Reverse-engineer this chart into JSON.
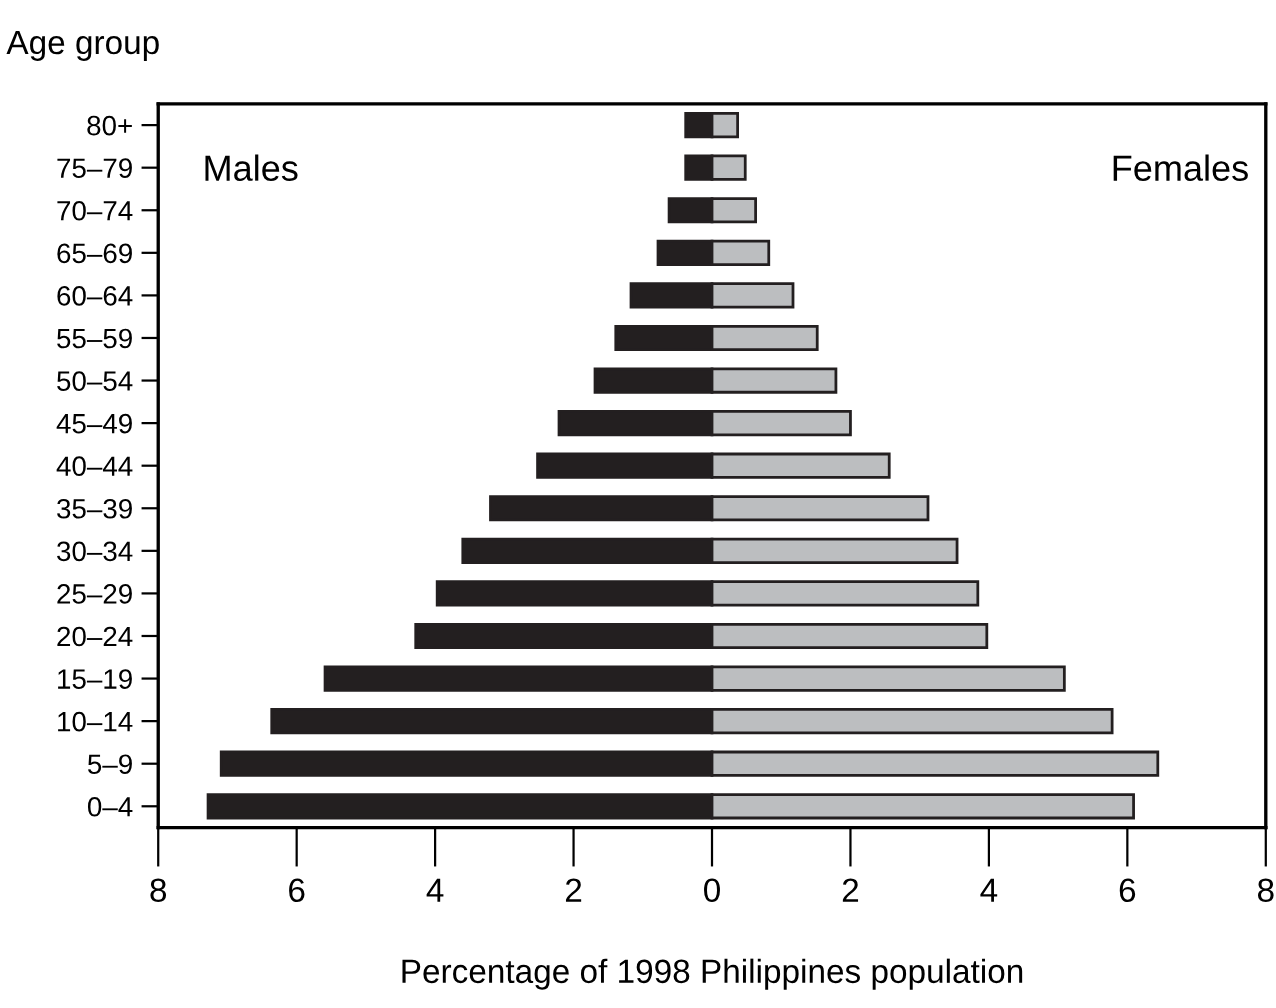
{
  "chart_data": {
    "type": "bar",
    "orientation": "horizontal",
    "stacked": true,
    "xlabel": "Percentage of 1998 Philippines population",
    "ylabel": "Age group",
    "categories": [
      "80+",
      "75–79",
      "70–74",
      "65–69",
      "60–64",
      "55–59",
      "50–54",
      "45–49",
      "40–44",
      "35–39",
      "30–34",
      "25–29",
      "20–24",
      "15–19",
      "10–14",
      "5–9",
      "0–4"
    ],
    "series": [
      {
        "name": "Males",
        "color": "#231f20",
        "values": [
          -0.38,
          -0.38,
          -0.62,
          -0.78,
          -1.17,
          -1.39,
          -1.69,
          -2.21,
          -2.52,
          -3.2,
          -3.6,
          -3.97,
          -4.28,
          -5.59,
          -6.36,
          -7.09,
          -7.28
        ]
      },
      {
        "name": "Females",
        "color": "#bcbec0",
        "values": [
          0.37,
          0.48,
          0.63,
          0.82,
          1.17,
          1.52,
          1.79,
          2.0,
          2.56,
          3.12,
          3.54,
          3.84,
          3.97,
          5.09,
          5.78,
          6.44,
          6.09
        ]
      }
    ],
    "xlim": [
      -8,
      8
    ],
    "xticks": [
      {
        "value": -8,
        "label": "8"
      },
      {
        "value": -6,
        "label": "6"
      },
      {
        "value": -4,
        "label": "4"
      },
      {
        "value": -2,
        "label": "2"
      },
      0,
      2,
      4,
      6,
      8
    ],
    "grid": false,
    "legend": false
  }
}
